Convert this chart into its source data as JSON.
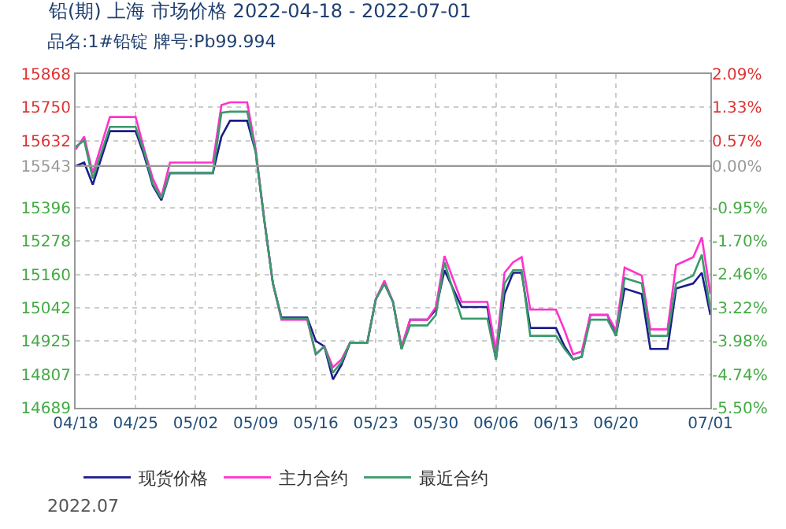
{
  "chart_data": {
    "type": "line",
    "title": "铅(期) 上海 市场价格 2022-04-18 - 2022-07-01",
    "subtitle": "品名:1#铅锭 牌号:Pb99.994",
    "annotations": [
      "2022.07"
    ],
    "x": [
      "2022-04-18",
      "2022-04-19",
      "2022-04-20",
      "2022-04-22",
      "2022-04-25",
      "2022-04-26",
      "2022-04-27",
      "2022-04-28",
      "2022-04-29",
      "2022-05-04",
      "2022-05-05",
      "2022-05-06",
      "2022-05-08",
      "2022-05-09",
      "2022-05-10",
      "2022-05-11",
      "2022-05-12",
      "2022-05-15",
      "2022-05-16",
      "2022-05-17",
      "2022-05-18",
      "2022-05-19",
      "2022-05-20",
      "2022-05-22",
      "2022-05-23",
      "2022-05-24",
      "2022-05-25",
      "2022-05-26",
      "2022-05-27",
      "2022-05-29",
      "2022-05-30",
      "2022-05-31",
      "2022-06-02",
      "2022-06-05",
      "2022-06-06",
      "2022-06-07",
      "2022-06-08",
      "2022-06-09",
      "2022-06-10",
      "2022-06-13",
      "2022-06-14",
      "2022-06-15",
      "2022-06-16",
      "2022-06-17",
      "2022-06-19",
      "2022-06-20",
      "2022-06-21",
      "2022-06-23",
      "2022-06-24",
      "2022-06-26",
      "2022-06-27",
      "2022-06-29",
      "2022-06-30",
      "2022-07-01"
    ],
    "series": [
      {
        "name": "现货价格",
        "color": "#1c1c8c",
        "values": [
          15543,
          15555,
          15477,
          15666,
          15666,
          15580,
          15474,
          15422,
          15518,
          15518,
          15647,
          15703,
          15703,
          15592,
          15351,
          15128,
          15008,
          15008,
          14925,
          14906,
          14789,
          14841,
          14919,
          14919,
          15073,
          15128,
          15063,
          14897,
          15000,
          15000,
          15036,
          15175,
          15045,
          15045,
          14860,
          15091,
          15166,
          15166,
          14971,
          14971,
          14906,
          14860,
          14869,
          15017,
          15017,
          14943,
          15110,
          15091,
          14897,
          14897,
          15110,
          15128,
          15166,
          15017
        ]
      },
      {
        "name": "主力合约",
        "color": "#ff33cc",
        "values": [
          15601,
          15647,
          15518,
          15716,
          15716,
          15601,
          15499,
          15434,
          15555,
          15555,
          15758,
          15768,
          15768,
          15601,
          15351,
          15128,
          15000,
          15000,
          14878,
          14906,
          14832,
          14860,
          14919,
          14919,
          15073,
          15138,
          15063,
          14906,
          15000,
          15000,
          15045,
          15225,
          15063,
          15063,
          14888,
          15166,
          15203,
          15221,
          15036,
          15036,
          14962,
          14878,
          14888,
          15017,
          15017,
          14962,
          15184,
          15156,
          14966,
          14966,
          15193,
          15221,
          15291,
          15091
        ]
      },
      {
        "name": "最近合约",
        "color": "#3a9a6a",
        "values": [
          15611,
          15633,
          15499,
          15681,
          15681,
          15592,
          15480,
          15429,
          15518,
          15518,
          15731,
          15735,
          15735,
          15592,
          15351,
          15128,
          15004,
          15004,
          14878,
          14906,
          14813,
          14850,
          14919,
          14919,
          15073,
          15128,
          15063,
          14897,
          14980,
          14980,
          15017,
          15203,
          15004,
          15004,
          14860,
          15128,
          15175,
          15175,
          14943,
          14943,
          14897,
          14860,
          14869,
          15000,
          15000,
          14943,
          15147,
          15128,
          14943,
          14943,
          15128,
          15156,
          15230,
          15036
        ]
      }
    ],
    "xlim": [
      "2022-04-18",
      "2022-07-01"
    ],
    "xticks": [
      {
        "value": "2022-04-18",
        "label": "04/18"
      },
      {
        "value": "2022-04-25",
        "label": "04/25"
      },
      {
        "value": "2022-05-02",
        "label": "05/02"
      },
      {
        "value": "2022-05-09",
        "label": "05/09"
      },
      {
        "value": "2022-05-16",
        "label": "05/16"
      },
      {
        "value": "2022-05-23",
        "label": "05/23"
      },
      {
        "value": "2022-05-30",
        "label": "05/30"
      },
      {
        "value": "2022-06-06",
        "label": "06/06"
      },
      {
        "value": "2022-06-13",
        "label": "06/13"
      },
      {
        "value": "2022-06-20",
        "label": "06/20"
      },
      {
        "value": "2022-07-01",
        "label": "07/01"
      }
    ],
    "ylim": [
      14689,
      15868
    ],
    "yticks": [
      15868,
      15750,
      15632,
      15543,
      15396,
      15278,
      15160,
      15042,
      14925,
      14807,
      14689
    ],
    "y2lim": [
      -5.5,
      2.09
    ],
    "y2ticks": [
      {
        "value": 2.09,
        "label": "2.09%"
      },
      {
        "value": 1.33,
        "label": "1.33%"
      },
      {
        "value": 0.57,
        "label": "0.57%"
      },
      {
        "value": 0,
        "label": "0.00%"
      },
      {
        "value": -0.95,
        "label": "-0.95%"
      },
      {
        "value": -1.7,
        "label": "-1.70%"
      },
      {
        "value": -2.46,
        "label": "-2.46%"
      },
      {
        "value": -3.22,
        "label": "-3.22%"
      },
      {
        "value": -3.98,
        "label": "-3.98%"
      },
      {
        "value": -4.74,
        "label": "-4.74%"
      },
      {
        "value": -5.5,
        "label": "-5.50%"
      }
    ],
    "ref_lines": [
      {
        "axis": "y",
        "value": 15543,
        "color": "#999999"
      }
    ],
    "grid": true,
    "legend": "bottom",
    "marker": "none",
    "line_style": "solid"
  }
}
